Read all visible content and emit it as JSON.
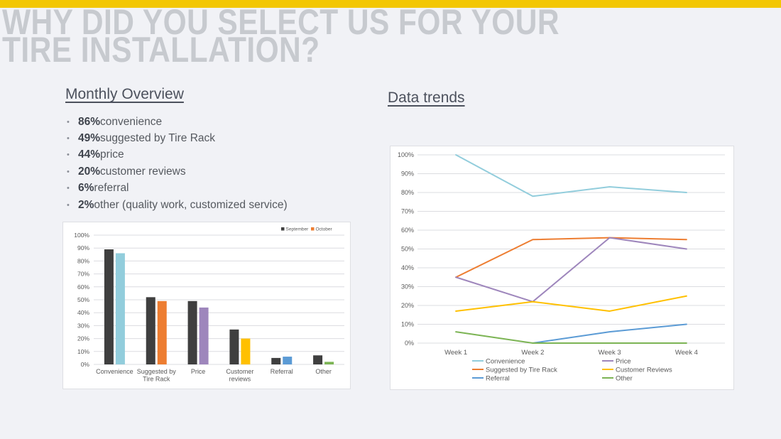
{
  "slide": {
    "title_line1": "WHY DID YOU SELECT US FOR YOUR",
    "title_line2": "TIRE INSTALLATION?",
    "accent_color": "#F3C703",
    "background_color": "#F1F2F6",
    "title_color": "#C7CACF"
  },
  "monthly_overview": {
    "heading": "Monthly Overview",
    "bullets": [
      {
        "value": "86%",
        "text": " convenience"
      },
      {
        "value": "49%",
        "text": " suggested by Tire Rack"
      },
      {
        "value": "44%",
        "text": " price"
      },
      {
        "value": "20%",
        "text": " customer reviews"
      },
      {
        "value": "6%",
        "text": " referral"
      },
      {
        "value": "2%",
        "text": " other (quality work, customized service)"
      }
    ]
  },
  "data_trends": {
    "heading": "Data trends"
  },
  "chart_data": [
    {
      "type": "bar",
      "title": "",
      "categories": [
        "Convenience",
        "Suggested by Tire Rack",
        "Price",
        "Customer reviews",
        "Referral",
        "Other"
      ],
      "series": [
        {
          "name": "September",
          "color": "#3F3F3F",
          "values": [
            89,
            52,
            49,
            27,
            5,
            7
          ]
        },
        {
          "name": "October",
          "color": "#ED7D31",
          "bar_colors": [
            "#92CDDC",
            "#ED7D31",
            "#9E86BC",
            "#FFC000",
            "#5B9BD5",
            "#7CB454"
          ],
          "values": [
            86,
            49,
            44,
            20,
            6,
            2
          ]
        }
      ],
      "xlabel": "",
      "ylabel": "",
      "ylim": [
        0,
        100
      ],
      "ytick_step": 10,
      "ytick_format": "percent",
      "grid": true,
      "legend_position": "top-right"
    },
    {
      "type": "line",
      "title": "",
      "x": [
        "Week 1",
        "Week 2",
        "Week 3",
        "Week 4"
      ],
      "series": [
        {
          "name": "Convenience",
          "color": "#92CDDC",
          "values": [
            100,
            78,
            83,
            80
          ]
        },
        {
          "name": "Suggested by Tire Rack",
          "color": "#ED7D31",
          "values": [
            35,
            55,
            56,
            55
          ]
        },
        {
          "name": "Referral",
          "color": "#5B9BD5",
          "values": [
            null,
            0,
            6,
            10
          ]
        },
        {
          "name": "Price",
          "color": "#9E86BC",
          "values": [
            35,
            22,
            56,
            50
          ]
        },
        {
          "name": "Customer Reviews",
          "color": "#FFC000",
          "values": [
            17,
            22,
            17,
            25
          ]
        },
        {
          "name": "Other",
          "color": "#7CB454",
          "values": [
            6,
            0,
            0,
            0
          ]
        }
      ],
      "xlabel": "",
      "ylabel": "",
      "ylim": [
        0,
        100
      ],
      "ytick_step": 10,
      "ytick_format": "percent",
      "grid": true,
      "legend_position": "bottom",
      "legend_columns": 2
    }
  ]
}
